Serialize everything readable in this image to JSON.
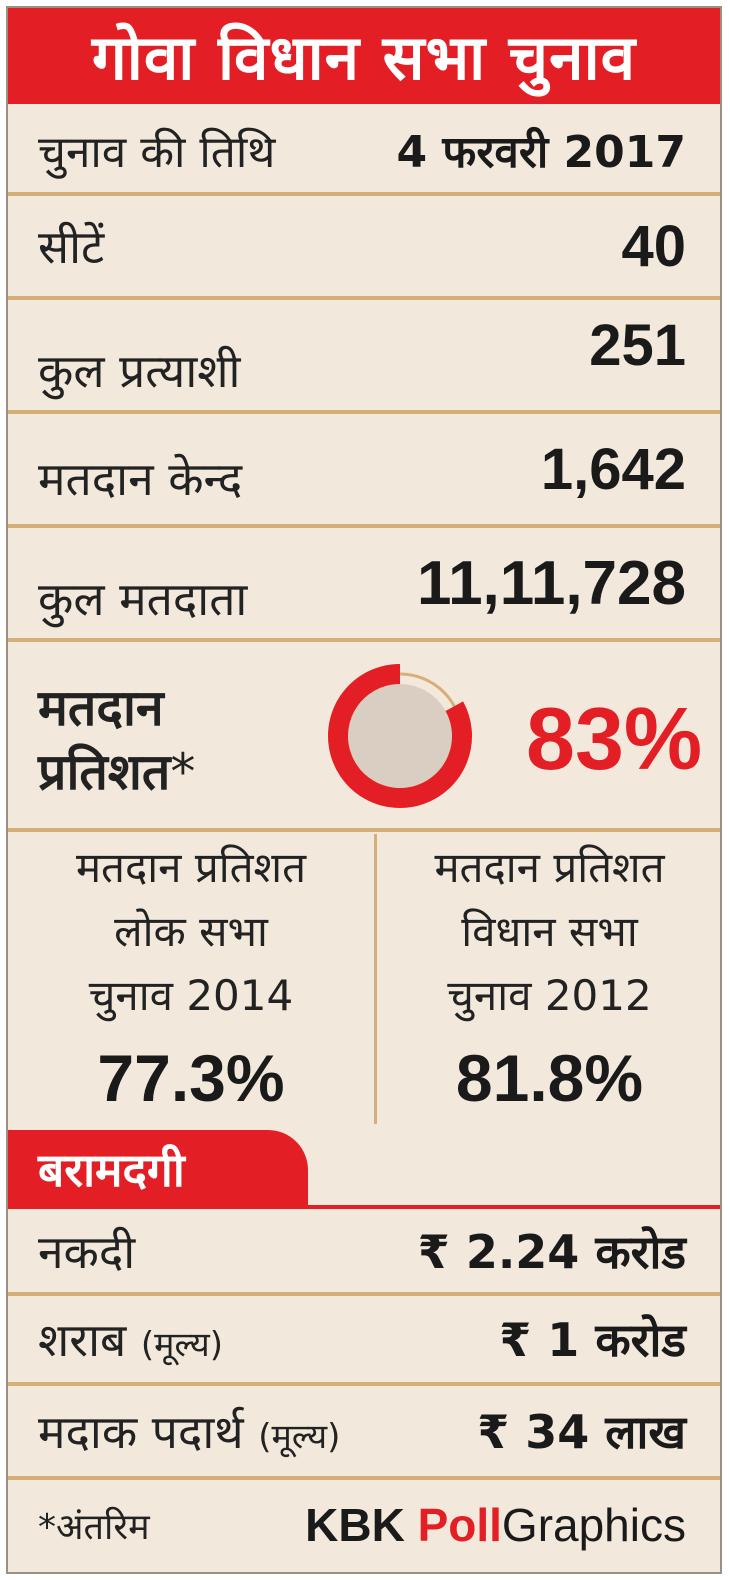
{
  "title": "गोवा विधान सभा चुनाव",
  "date": {
    "label": "चुनाव की तिथि",
    "value": "4 फरवरी 2017"
  },
  "stats": [
    {
      "label": "सीटें",
      "value": "40"
    },
    {
      "label": "कुल प्रत्याशी",
      "value": "251"
    },
    {
      "label": "मतदान केन्द",
      "value": "1,642"
    },
    {
      "label": "कुल मतदाता",
      "value": "11,11,728"
    }
  ],
  "turnout": {
    "label_line1": "मतदान",
    "label_line2": "प्रतिशत",
    "asterisk": "*",
    "value": "83%",
    "fraction": 0.83,
    "colors": {
      "fill": "#e31e24",
      "rest": "#d6ae77",
      "center": "#d9cec1"
    }
  },
  "comparison": [
    {
      "line1": "मतदान प्रतिशत",
      "line2": "लोक सभा",
      "line3": "चुनाव 2014",
      "value": "77.3%"
    },
    {
      "line1": "मतदान प्रतिशत",
      "line2": "विधान सभा",
      "line3": "चुनाव 2012",
      "value": "81.8%"
    }
  ],
  "recovery": {
    "heading": "बरामदगी",
    "items": [
      {
        "label": "नकदी",
        "note": "",
        "value": "₹ 2.24 करोड"
      },
      {
        "label": "शराब",
        "note": "(मूल्य)",
        "value": "₹ 1 करोड"
      },
      {
        "label": "मदाक पदार्थ",
        "note": "(मूल्य)",
        "value": "₹ 34 लाख"
      }
    ]
  },
  "footer": {
    "note": "*अंतरिम",
    "brand_kbk": "KBK",
    "brand_poll": "Poll",
    "brand_graphics": "Graphics"
  },
  "colors": {
    "accent": "#e31e24",
    "background": "#f2e9dc",
    "separator": "#d6ae77"
  }
}
